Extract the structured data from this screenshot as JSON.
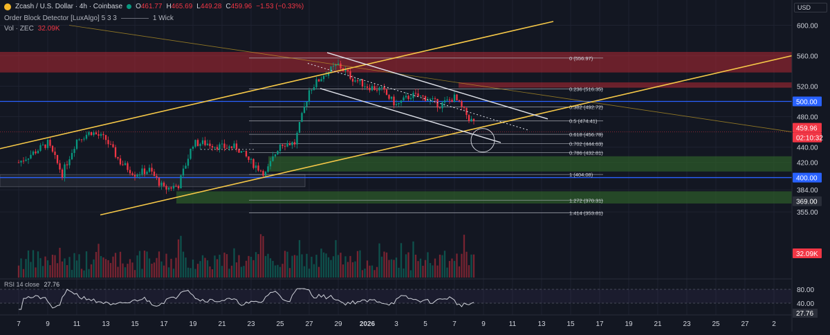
{
  "header": {
    "title": "Zcash / U.S. Dollar · 4h · Coinbase",
    "ohlc": [
      {
        "k": "O",
        "v": "461.77"
      },
      {
        "k": "H",
        "v": "465.69"
      },
      {
        "k": "L",
        "v": "449.28"
      },
      {
        "k": "C",
        "v": "459.96"
      }
    ],
    "change": "−1.53 (−0.33%)",
    "indicator": "Order Block Detector [LuxAlgo] 5 3 3",
    "indicator_wick": "1 Wick",
    "vol_label": "Vol · ZEC",
    "vol_value": "32.09K",
    "currency": "USD"
  },
  "price_axis": {
    "ticks": [
      "600.00",
      "560.00",
      "520.00",
      "480.00",
      "440.00",
      "420.00",
      "384.00",
      "355.00"
    ],
    "badges": [
      {
        "text": "500.00",
        "kind": "blue"
      },
      {
        "text": "459.96",
        "kind": "red"
      },
      {
        "text": "02:10:32",
        "kind": "red"
      },
      {
        "text": "400.00",
        "kind": "blue"
      },
      {
        "text": "369.00",
        "kind": "dark"
      },
      {
        "text": "32.09K",
        "kind": "red"
      }
    ]
  },
  "fib_levels": [
    {
      "label": "0 (556.97)",
      "price": 556.97
    },
    {
      "label": "0.236 (516.35)",
      "price": 516.35
    },
    {
      "label": "0.382 (492.72)",
      "price": 492.72
    },
    {
      "label": "0.5 (474.41)",
      "price": 474.41
    },
    {
      "label": "0.618 (456.78)",
      "price": 456.78
    },
    {
      "label": "0.702 (444.63)",
      "price": 444.63
    },
    {
      "label": "0.786 (432.81)",
      "price": 432.81
    },
    {
      "label": "1 (404.08)",
      "price": 404.08
    },
    {
      "label": "1.272 (370.31)",
      "price": 370.31
    },
    {
      "label": "1.414 (353.81)",
      "price": 353.81
    }
  ],
  "rsi": {
    "label": "RSI 14 close",
    "value": "27.76",
    "ticks": [
      "80.00",
      "40.00"
    ]
  },
  "time_axis": [
    "7",
    "9",
    "11",
    "13",
    "15",
    "17",
    "19",
    "21",
    "23",
    "25",
    "27",
    "29",
    "2026",
    "3",
    "5",
    "7",
    "9",
    "11",
    "13",
    "15",
    "17",
    "19",
    "21",
    "23",
    "25",
    "27",
    "2"
  ],
  "colors": {
    "bg": "#131722",
    "up": "#089981",
    "down": "#f23645",
    "channel": "#f7c948",
    "fib": "#b2b5be",
    "blue_level": "#2962ff",
    "supply_zone": "#b22833",
    "demand_zone": "#2e5e2a"
  },
  "chart_data": {
    "type": "candlestick",
    "title": "Zcash / U.S. Dollar · 4h · Coinbase",
    "timeframe": "4h",
    "last_close": 459.96,
    "ylim": [
      345,
      615
    ],
    "x_ticks": [
      "7",
      "9",
      "11",
      "13",
      "15",
      "17",
      "19",
      "21",
      "23",
      "25",
      "27",
      "29",
      "2026",
      "3",
      "5",
      "7"
    ],
    "anchors": [
      {
        "x": "7 Dec",
        "price": 420
      },
      {
        "x": "9 Dec",
        "price": 445
      },
      {
        "x": "10 Dec",
        "price": 405
      },
      {
        "x": "11 Dec",
        "price": 450
      },
      {
        "x": "12 Dec",
        "price": 460
      },
      {
        "x": "13 Dec",
        "price": 450
      },
      {
        "x": "14 Dec",
        "price": 420
      },
      {
        "x": "15 Dec",
        "price": 405
      },
      {
        "x": "16 Dec",
        "price": 410
      },
      {
        "x": "17 Dec",
        "price": 385
      },
      {
        "x": "18 Dec",
        "price": 390
      },
      {
        "x": "19 Dec",
        "price": 445
      },
      {
        "x": "20 Dec",
        "price": 445
      },
      {
        "x": "21 Dec",
        "price": 440
      },
      {
        "x": "22 Dec",
        "price": 440
      },
      {
        "x": "23 Dec",
        "price": 420
      },
      {
        "x": "24 Dec",
        "price": 405
      },
      {
        "x": "25 Dec",
        "price": 445
      },
      {
        "x": "26 Dec",
        "price": 445
      },
      {
        "x": "27 Dec",
        "price": 515
      },
      {
        "x": "28 Dec",
        "price": 535
      },
      {
        "x": "29 Dec",
        "price": 548
      },
      {
        "x": "30 Dec",
        "price": 530
      },
      {
        "x": "31 Dec",
        "price": 520
      },
      {
        "x": "1 Jan",
        "price": 515
      },
      {
        "x": "2 Jan",
        "price": 495
      },
      {
        "x": "3 Jan",
        "price": 508
      },
      {
        "x": "4 Jan",
        "price": 505
      },
      {
        "x": "5 Jan",
        "price": 495
      },
      {
        "x": "6 Jan",
        "price": 505
      },
      {
        "x": "7 Jan",
        "price": 478
      },
      {
        "x": "8 Jan",
        "price": 460
      }
    ],
    "volume_last": "32.09K",
    "rsi_last": 27.76
  }
}
